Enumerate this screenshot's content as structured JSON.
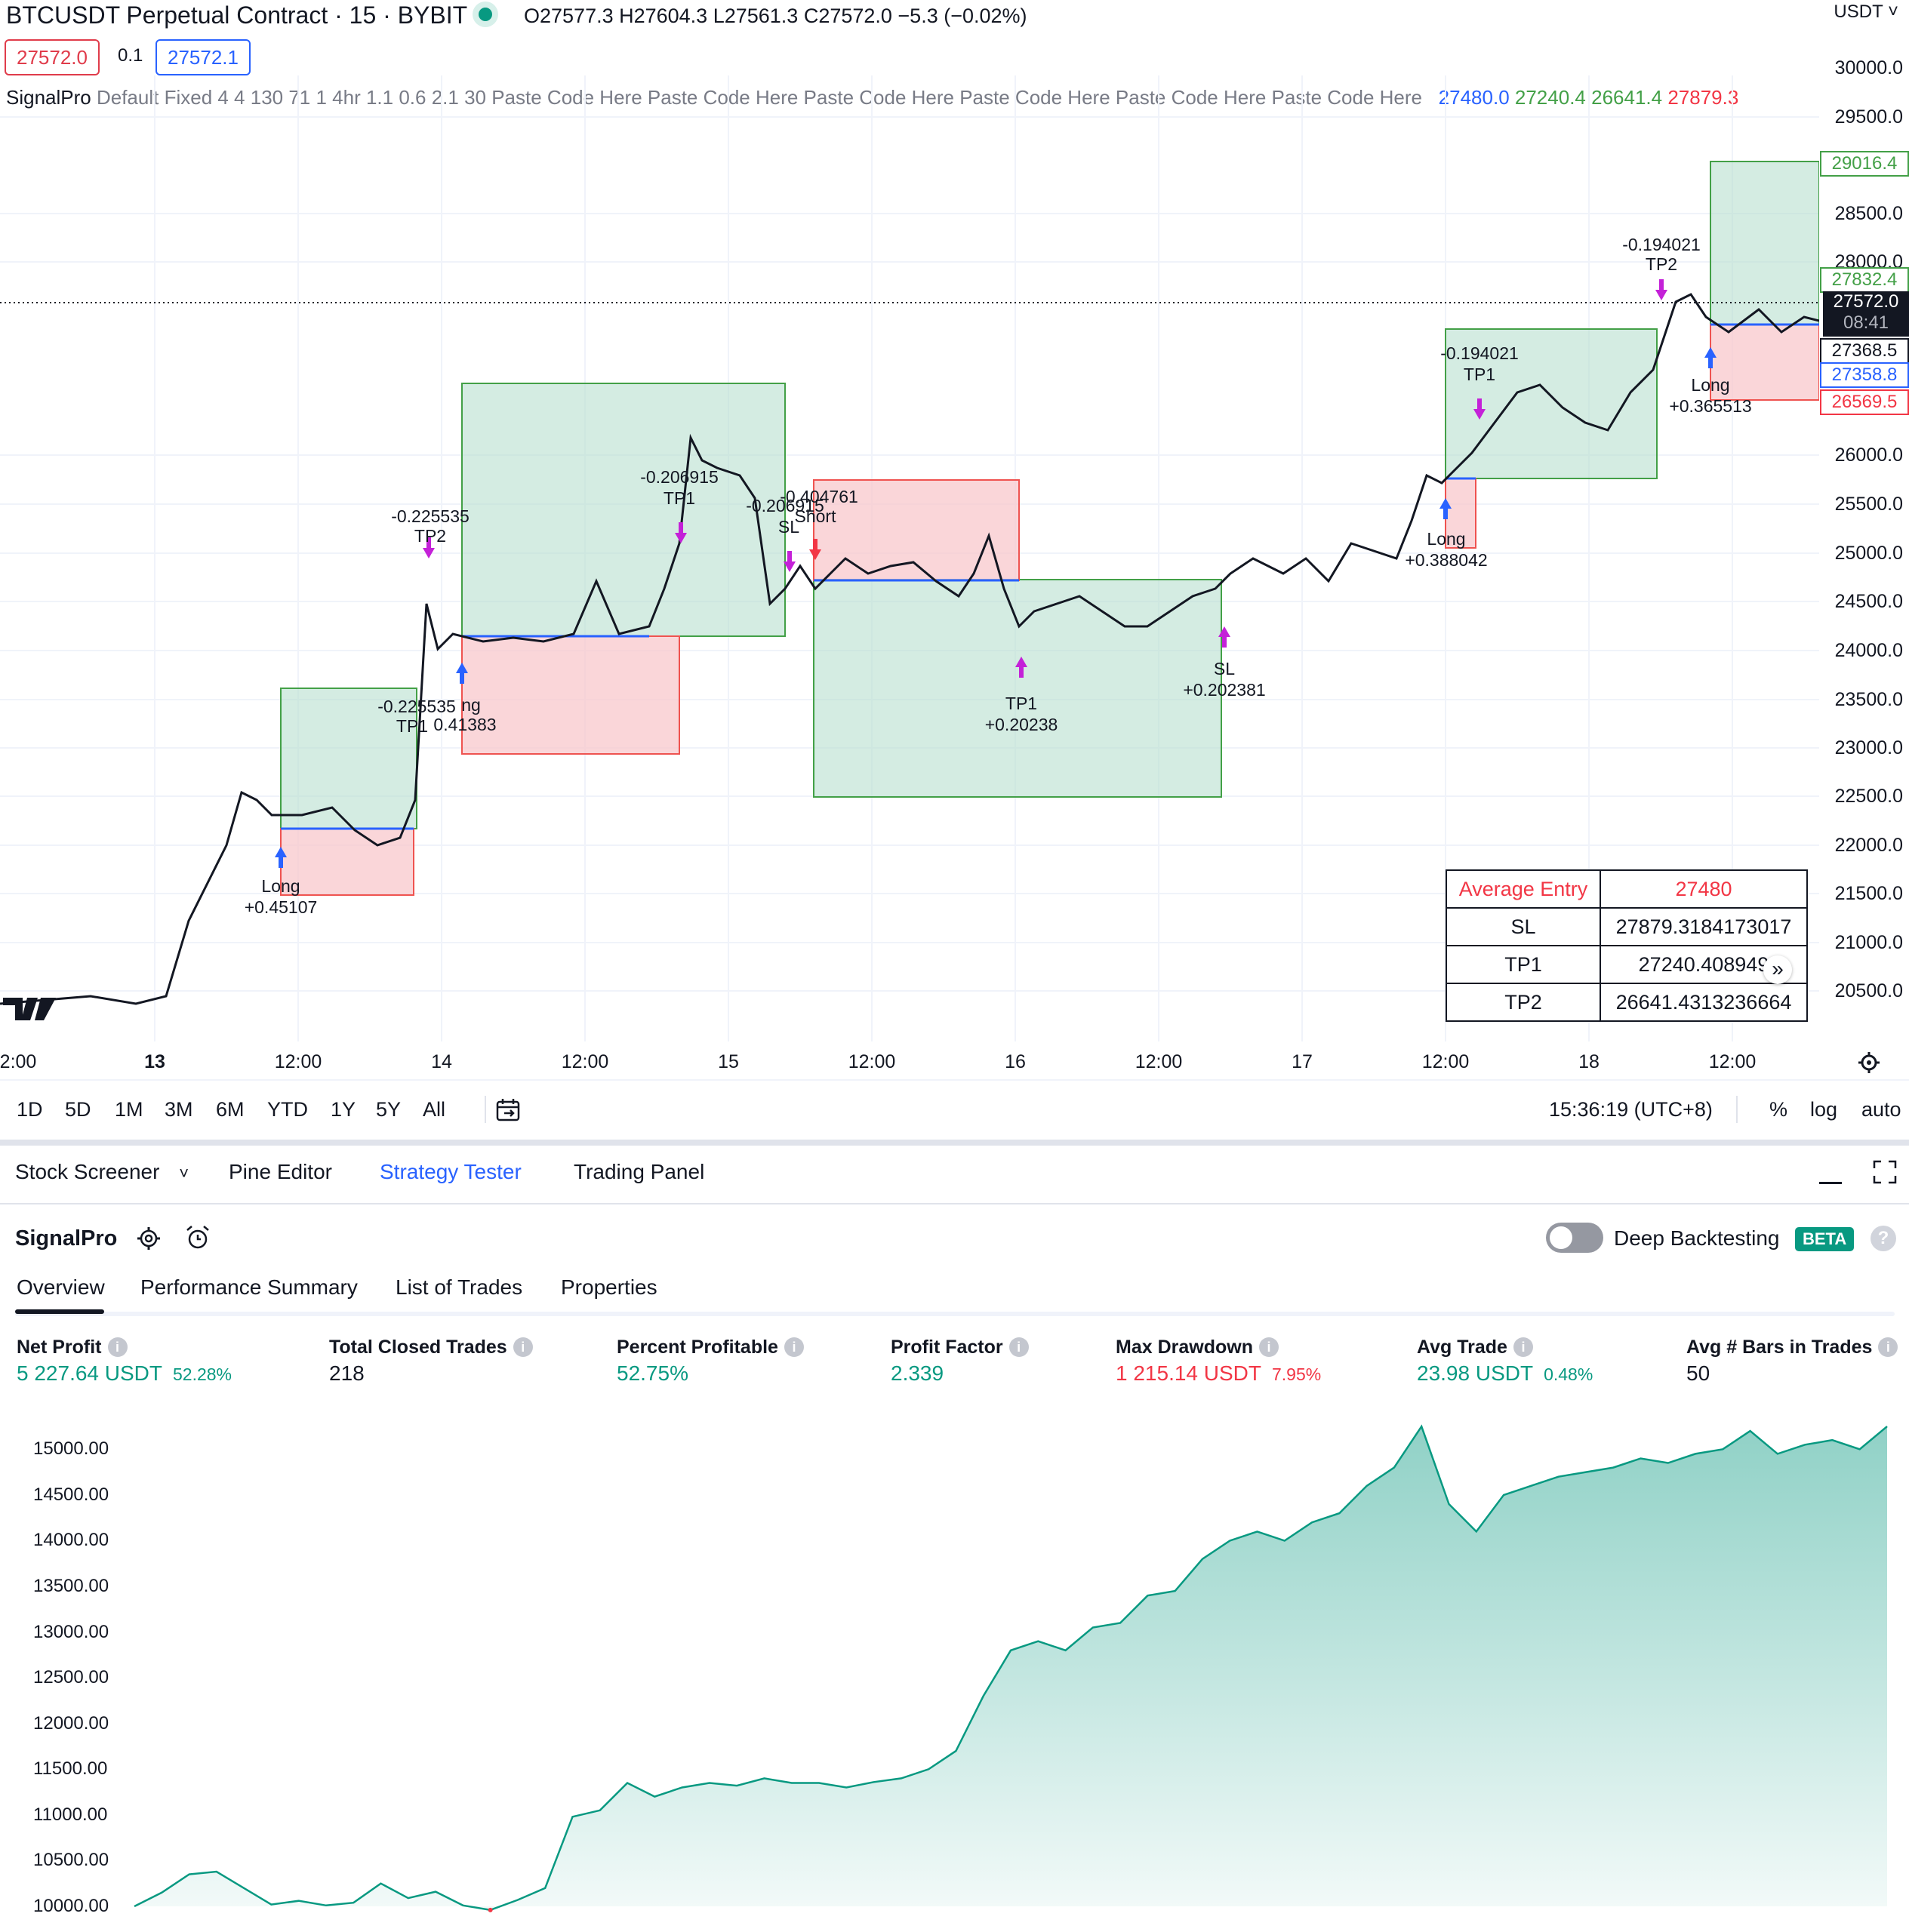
{
  "header": {
    "title": "BTCUSDT Perpetual Contract · 15 · BYBIT",
    "ohlc": "O27577.3  H27604.3  L27561.3  C27572.0  −5.3 (−0.02%)",
    "bid": "27572.0",
    "qty": "0.1",
    "ask": "27572.1",
    "currency": "USDT"
  },
  "indicator": {
    "name": "SignalPro",
    "params": "Default Fixed 4 4 130 71 1 4hr 1.1 0.6 2.1 30 Paste Code Here Paste Code Here Paste Code Here Paste Code Here Paste Code Here Paste Code Here",
    "values": [
      "27480.0",
      "27240.4",
      "26641.4",
      "27879.3"
    ],
    "value_colors": [
      "#2962ff",
      "#43a047",
      "#43a047",
      "#f23645"
    ]
  },
  "price_axis": [
    "30000.0",
    "29500.0",
    "28500.0",
    "28000.0",
    "26000.0",
    "25500.0",
    "25000.0",
    "24500.0",
    "24000.0",
    "23500.0",
    "23000.0",
    "22500.0",
    "22000.0",
    "21500.0",
    "21000.0",
    "20500.0"
  ],
  "price_tags": {
    "tp_top": "29016.4",
    "tp1": "27832.4",
    "last": "27572.0",
    "countdown": "08:41",
    "level_a": "27368.5",
    "entry": "27358.8",
    "sl": "26569.5"
  },
  "chart_annotations": [
    {
      "text": "-0.225535",
      "sub": "TP2"
    },
    {
      "text": "-0.206915",
      "sub": "TP1"
    },
    {
      "text": "-0.206915",
      "sub": "SL"
    },
    {
      "text": "-0.404761",
      "sub": "Short"
    },
    {
      "text": "-0.225535",
      "sub": "TP1"
    },
    {
      "text": "Long",
      "sub": "+0.45107"
    },
    {
      "text": "ng",
      "sub": "0.41383"
    },
    {
      "text": "TP1",
      "sub": "+0.20238"
    },
    {
      "text": "SL",
      "sub": "+0.202381"
    },
    {
      "text": "-0.194021",
      "sub": "TP1"
    },
    {
      "text": "Long",
      "sub": "+0.388042"
    },
    {
      "text": "-0.194021",
      "sub": "TP2"
    },
    {
      "text": "Long",
      "sub": "+0.365513"
    }
  ],
  "info_table": {
    "header_label": "Average Entry",
    "header_value": "27480",
    "rows": [
      {
        "label": "SL",
        "value": "27879.3184173017"
      },
      {
        "label": "TP1",
        "value": "27240.408949"
      },
      {
        "label": "TP2",
        "value": "26641.4313236664"
      }
    ]
  },
  "time_axis": [
    "2:00",
    "13",
    "12:00",
    "14",
    "12:00",
    "15",
    "12:00",
    "16",
    "12:00",
    "17",
    "12:00",
    "18",
    "12:00"
  ],
  "range_buttons": [
    "1D",
    "5D",
    "1M",
    "3M",
    "6M",
    "YTD",
    "1Y",
    "5Y",
    "All"
  ],
  "clock": "15:36:19 (UTC+8)",
  "scale_buttons": [
    "%",
    "log",
    "auto"
  ],
  "panel_tabs": [
    "Stock Screener",
    "Pine Editor",
    "Strategy Tester",
    "Trading Panel"
  ],
  "active_panel_tab": "Strategy Tester",
  "strategy": {
    "name": "SignalPro",
    "deep_backtesting": "Deep Backtesting",
    "beta": "BETA",
    "deep_backtesting_on": false
  },
  "sub_tabs": [
    "Overview",
    "Performance Summary",
    "List of Trades",
    "Properties"
  ],
  "metrics": [
    {
      "label": "Net Profit",
      "value": "5 227.64 USDT",
      "pct": "52.28%",
      "color": "#089981"
    },
    {
      "label": "Total Closed Trades",
      "value": "218",
      "pct": "",
      "color": "#131722"
    },
    {
      "label": "Percent Profitable",
      "value": "52.75%",
      "pct": "",
      "color": "#089981"
    },
    {
      "label": "Profit Factor",
      "value": "2.339",
      "pct": "",
      "color": "#089981"
    },
    {
      "label": "Max Drawdown",
      "value": "1 215.14 USDT",
      "pct": "7.95%",
      "color": "#f23645"
    },
    {
      "label": "Avg Trade",
      "value": "23.98 USDT",
      "pct": "0.48%",
      "color": "#089981"
    },
    {
      "label": "Avg # Bars in Trades",
      "value": "50",
      "pct": "",
      "color": "#131722"
    }
  ],
  "equity_axis": [
    "15000.00",
    "14500.00",
    "14000.00",
    "13500.00",
    "13000.00",
    "12500.00",
    "12000.00",
    "11500.00",
    "11000.00",
    "10500.00",
    "10000.00"
  ],
  "chart_data": {
    "type": "area",
    "title": "",
    "xlabel": "",
    "ylabel": "",
    "ylim": [
      10000,
      15300
    ],
    "series": [
      {
        "values": [
          10000,
          10150,
          10350,
          10380,
          10200,
          10020,
          10060,
          10010,
          10040,
          10250,
          10090,
          10160,
          10010,
          9960,
          10070,
          10200,
          10980,
          11050,
          11350,
          11200,
          11300,
          11350,
          11320,
          11400,
          11350,
          11350,
          11300,
          11360,
          11400,
          11500,
          11700,
          12300,
          12800,
          12900,
          12800,
          13050,
          13100,
          13400,
          13450,
          13800,
          14000,
          14100,
          14000,
          14200,
          14300,
          14600,
          14800,
          15250,
          14400,
          14100,
          14500,
          14600,
          14700,
          14750,
          14800,
          14900,
          14850,
          14950,
          15000,
          15200,
          14950,
          15050,
          15100,
          15000,
          15250
        ]
      }
    ]
  }
}
